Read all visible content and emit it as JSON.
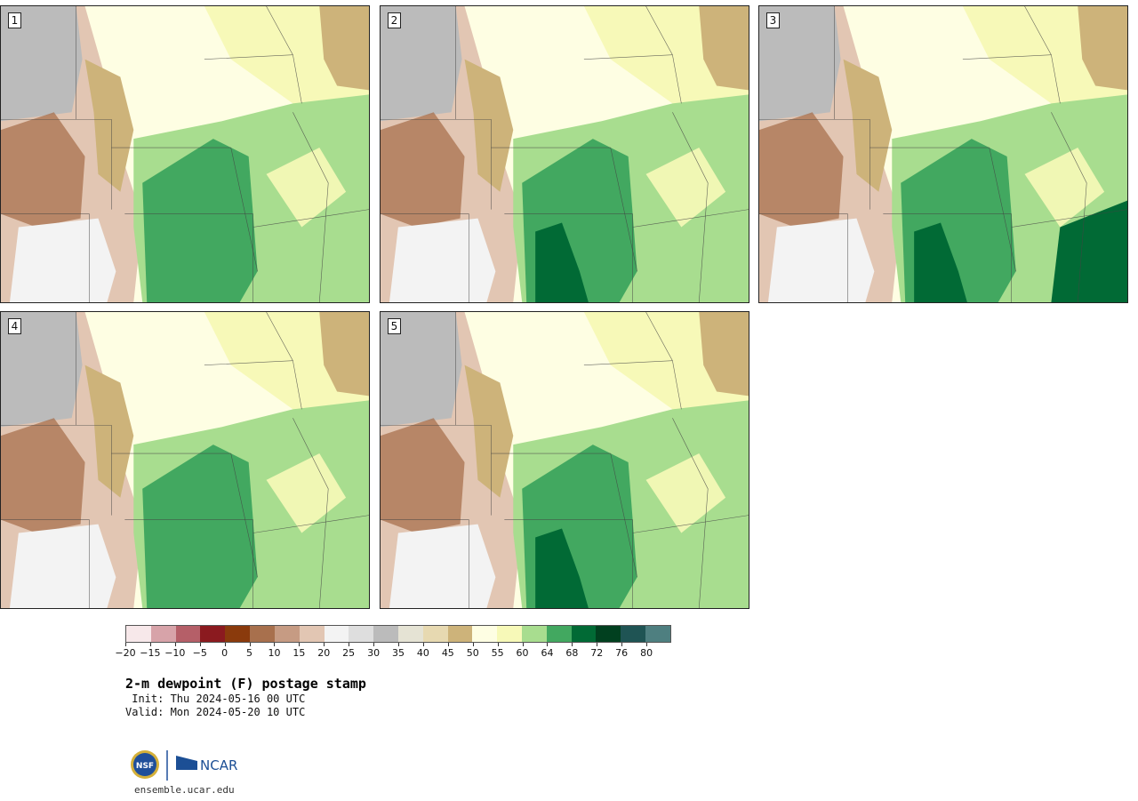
{
  "panels": [
    {
      "number": "1",
      "dark_core": false,
      "very_dark": false
    },
    {
      "number": "2",
      "dark_core": true,
      "very_dark": false
    },
    {
      "number": "3",
      "dark_core": true,
      "very_dark": true
    },
    {
      "number": "4",
      "dark_core": false,
      "very_dark": false
    },
    {
      "number": "5",
      "dark_core": true,
      "very_dark": false
    }
  ],
  "colorbar": {
    "colors": [
      "#f7e8ea",
      "#d7a3a9",
      "#b55f68",
      "#8b1a1f",
      "#8a3a0c",
      "#a8704d",
      "#c69b83",
      "#e2c6b3",
      "#f3f3f3",
      "#dedede",
      "#bbbbbb",
      "#e5e3d4",
      "#e7d9b1",
      "#cdb37a",
      "#fefee3",
      "#f7f9b8",
      "#a8dd8f",
      "#42a860",
      "#016a35",
      "#01401f",
      "#1f5454",
      "#4e7f80"
    ],
    "tick_labels": [
      "−20",
      "−15",
      "−10",
      "−5",
      "0",
      "5",
      "10",
      "15",
      "20",
      "25",
      "30",
      "35",
      "40",
      "45",
      "50",
      "55",
      "60",
      "64",
      "68",
      "72",
      "76",
      "80"
    ]
  },
  "title": "2-m dewpoint (F) postage stamp",
  "init_label": " Init: Thu 2024-05-16 00 UTC",
  "valid_label": "Valid: Mon 2024-05-20 10 UTC",
  "logos": {
    "nsf_text": "NSF",
    "ncar_text": "NCAR"
  },
  "footer": "ensemble.ucar.edu"
}
